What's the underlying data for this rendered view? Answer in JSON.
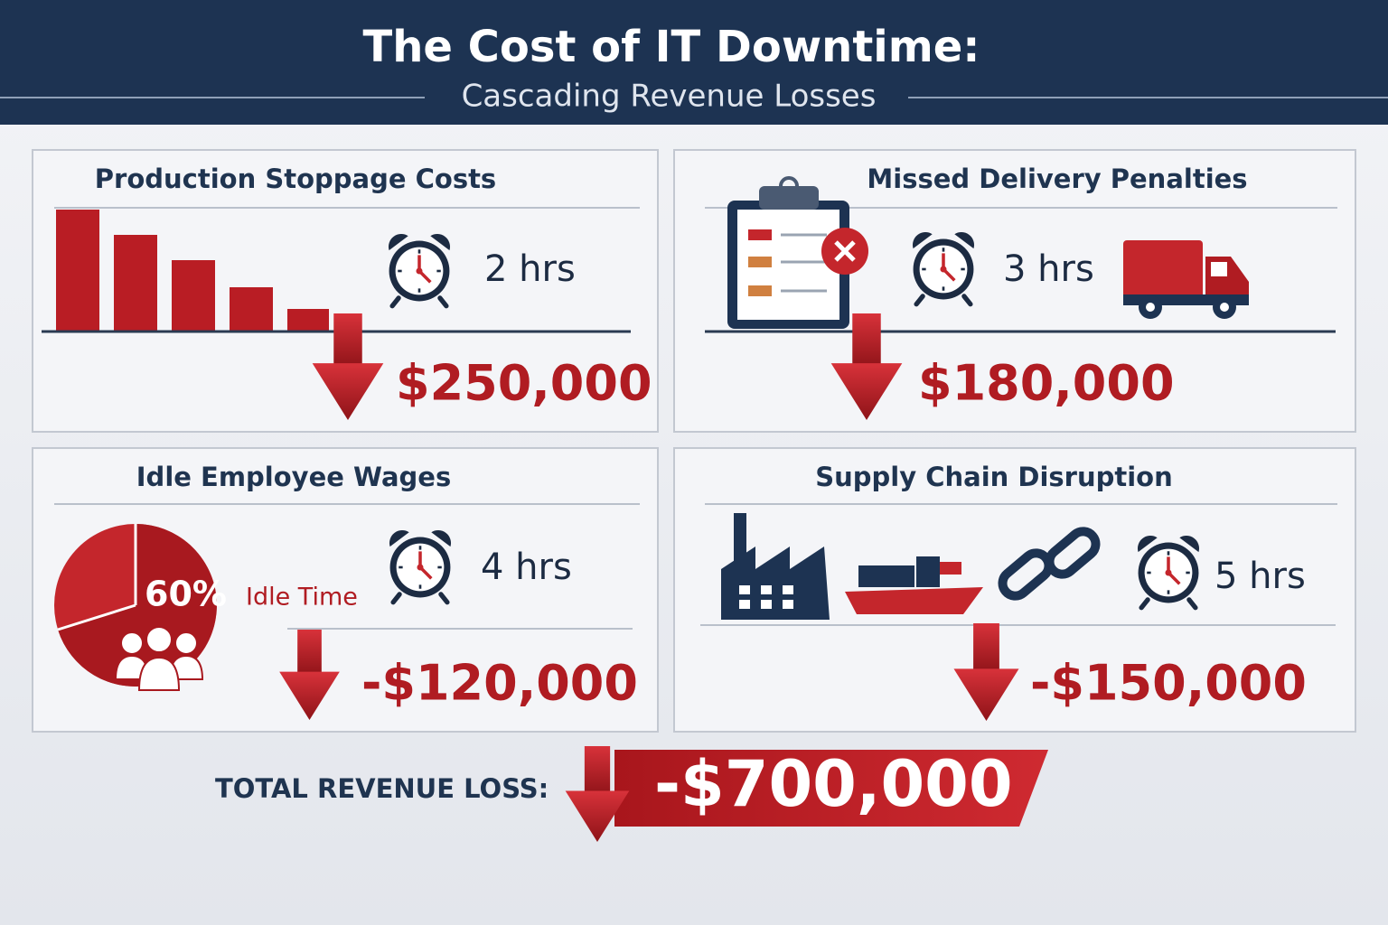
{
  "header": {
    "title": "The Cost of IT Downtime:",
    "subtitle": "Cascading Revenue Losses"
  },
  "panels": [
    {
      "title": "Production Stoppage Costs",
      "duration": "2 hrs",
      "amount": "$250,000"
    },
    {
      "title": "Missed Delivery Penalties",
      "duration": "3 hrs",
      "amount": "$180,000"
    },
    {
      "title": "Idle Employee Wages",
      "duration": "4 hrs",
      "amount": "-$120,000",
      "share": "60%",
      "share_label": "Idle Time"
    },
    {
      "title": "Supply Chain Disruption",
      "duration": "5 hrs",
      "amount": "-$150,000"
    }
  ],
  "total": {
    "label": "TOTAL REVENUE LOSS:",
    "amount": "-$700,000"
  }
}
